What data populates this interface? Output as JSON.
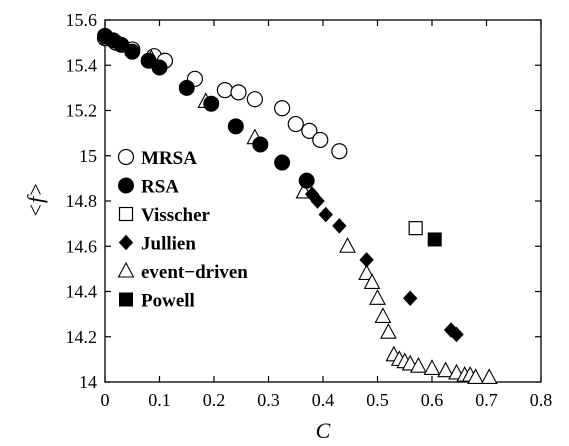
{
  "chart_data": {
    "type": "scatter",
    "title": "",
    "xlabel": "C",
    "ylabel": "<f>",
    "xlim": [
      0,
      0.8
    ],
    "ylim": [
      14,
      15.6
    ],
    "xticks": [
      0,
      0.1,
      0.2,
      0.3,
      0.4,
      0.5,
      0.6,
      0.7,
      0.8
    ],
    "xtick_labels": [
      "0",
      "0.1",
      "0.2",
      "0.3",
      "0.4",
      "0.5",
      "0.6",
      "0.7",
      "0.8"
    ],
    "yticks": [
      14,
      14.2,
      14.4,
      14.6,
      14.8,
      15,
      15.2,
      15.4,
      15.6
    ],
    "ytick_labels": [
      "14",
      "14.2",
      "14.4",
      "14.6",
      "14.8",
      "15",
      "15.2",
      "15.4",
      "15.6"
    ],
    "grid": false,
    "legend_position": "left",
    "series": [
      {
        "name": "MRSA",
        "marker": "circle-open",
        "x": [
          0,
          0.02,
          0.05,
          0.09,
          0.11,
          0.165,
          0.22,
          0.245,
          0.275,
          0.325,
          0.35,
          0.375,
          0.395,
          0.43
        ],
        "y": [
          15.52,
          15.5,
          15.47,
          15.44,
          15.42,
          15.34,
          15.29,
          15.28,
          15.25,
          15.21,
          15.14,
          15.11,
          15.07,
          15.02
        ]
      },
      {
        "name": "RSA",
        "marker": "circle-filled",
        "x": [
          0,
          0.015,
          0.03,
          0.05,
          0.08,
          0.1,
          0.15,
          0.195,
          0.24,
          0.285,
          0.325,
          0.37
        ],
        "y": [
          15.53,
          15.51,
          15.49,
          15.46,
          15.42,
          15.39,
          15.3,
          15.23,
          15.13,
          15.05,
          14.97,
          14.89
        ]
      },
      {
        "name": "Visscher",
        "marker": "square-open",
        "x": [
          0.57
        ],
        "y": [
          14.68
        ]
      },
      {
        "name": "Jullien",
        "marker": "diamond-filled",
        "x": [
          0.38,
          0.39,
          0.405,
          0.43,
          0.48,
          0.56,
          0.635,
          0.645
        ],
        "y": [
          14.83,
          14.8,
          14.74,
          14.69,
          14.54,
          14.37,
          14.23,
          14.21
        ]
      },
      {
        "name": "event−driven",
        "marker": "triangle-open",
        "x": [
          0.005,
          0.085,
          0.185,
          0.275,
          0.365,
          0.445,
          0.48,
          0.49,
          0.5,
          0.51,
          0.52,
          0.53,
          0.54,
          0.55,
          0.56,
          0.575,
          0.6,
          0.625,
          0.645,
          0.66,
          0.67,
          0.68,
          0.705
        ],
        "y": [
          15.52,
          15.43,
          15.24,
          15.08,
          14.84,
          14.6,
          14.48,
          14.44,
          14.37,
          14.29,
          14.22,
          14.12,
          14.1,
          14.09,
          14.08,
          14.07,
          14.06,
          14.05,
          14.04,
          14.03,
          14.03,
          14.02,
          14.02
        ]
      },
      {
        "name": "Powell",
        "marker": "square-filled",
        "x": [
          0.605
        ],
        "y": [
          14.63
        ]
      }
    ]
  }
}
